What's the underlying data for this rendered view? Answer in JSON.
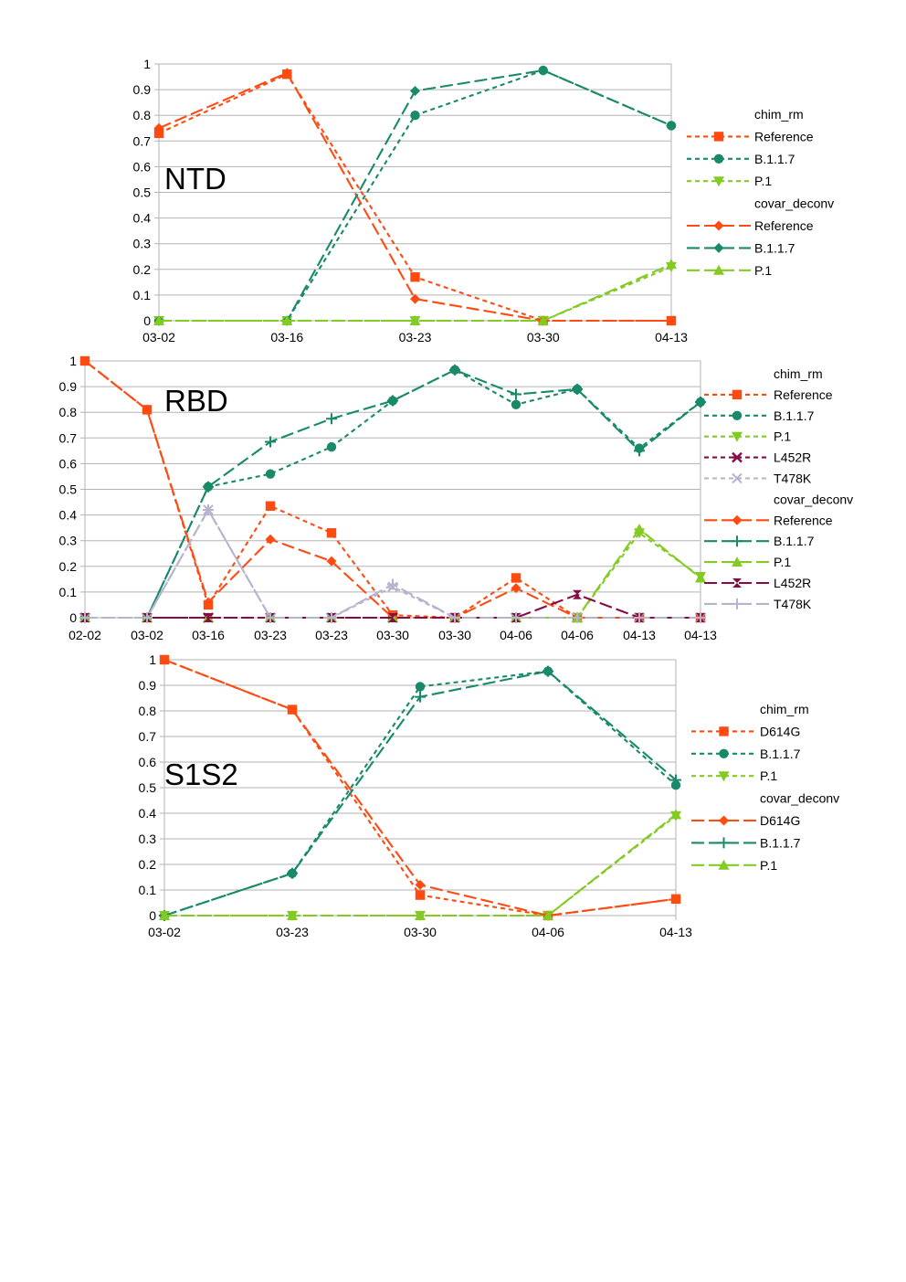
{
  "chart_data": [
    {
      "type": "line",
      "title": "NTD",
      "categories": [
        "03-02",
        "03-16",
        "03-23",
        "03-30",
        "04-13"
      ],
      "yticks": [
        "0",
        "0.1",
        "0.2",
        "0.3",
        "0.4",
        "0.5",
        "0.6",
        "0.7",
        "0.8",
        "0.9",
        "1"
      ],
      "ylim": [
        0,
        1
      ],
      "grid": true,
      "legend_position": "right",
      "legend_groups": [
        "chim_rm",
        "covar_deconv"
      ],
      "series": [
        {
          "group": "chim_rm",
          "name": "Reference",
          "color": "#ff4a12",
          "dash": "short",
          "marker": "square",
          "values": [
            0.73,
            0.96,
            0.17,
            0.0,
            0.0
          ]
        },
        {
          "group": "chim_rm",
          "name": "B.1.1.7",
          "color": "#188a6a",
          "dash": "short",
          "marker": "circle",
          "values": [
            0.0,
            0.0,
            0.8,
            0.975,
            0.76
          ]
        },
        {
          "group": "chim_rm",
          "name": "P.1",
          "color": "#83cb22",
          "dash": "short",
          "marker": "triangle-down",
          "values": [
            0.0,
            0.0,
            0.0,
            0.0,
            0.21
          ]
        },
        {
          "group": "covar_deconv",
          "name": "Reference",
          "color": "#ff4a12",
          "dash": "long",
          "marker": "diamond",
          "values": [
            0.75,
            0.965,
            0.085,
            0.0,
            0.0
          ]
        },
        {
          "group": "covar_deconv",
          "name": "B.1.1.7",
          "color": "#188a6a",
          "dash": "long",
          "marker": "diamond",
          "values": [
            0.0,
            0.0,
            0.895,
            0.975,
            0.76
          ]
        },
        {
          "group": "covar_deconv",
          "name": "P.1",
          "color": "#83cb22",
          "dash": "long",
          "marker": "triangle",
          "values": [
            0.0,
            0.0,
            0.0,
            0.0,
            0.22
          ]
        }
      ]
    },
    {
      "type": "line",
      "title": "RBD",
      "categories": [
        "02-02",
        "03-02",
        "03-16",
        "03-23",
        "03-23",
        "03-30",
        "03-30",
        "04-06",
        "04-06",
        "04-13",
        "04-13"
      ],
      "yticks": [
        "0",
        "0.1",
        "0.2",
        "0.3",
        "0.4",
        "0.5",
        "0.6",
        "0.7",
        "0.8",
        "0.9",
        "1"
      ],
      "ylim": [
        0,
        1
      ],
      "grid": true,
      "legend_position": "right",
      "legend_groups": [
        "chim_rm",
        "covar_deconv"
      ],
      "series": [
        {
          "group": "chim_rm",
          "name": "Reference",
          "color": "#ff4a12",
          "dash": "short",
          "marker": "square",
          "values": [
            1.0,
            0.81,
            0.05,
            0.435,
            0.33,
            0.01,
            0.0,
            0.155,
            0.0,
            0.0,
            0.0
          ]
        },
        {
          "group": "chim_rm",
          "name": "B.1.1.7",
          "color": "#188a6a",
          "dash": "short",
          "marker": "circle",
          "values": [
            0.0,
            0.0,
            0.51,
            0.56,
            0.665,
            0.845,
            0.965,
            0.83,
            0.89,
            0.66,
            0.84
          ]
        },
        {
          "group": "chim_rm",
          "name": "P.1",
          "color": "#83cb22",
          "dash": "short",
          "marker": "triangle-down",
          "values": [
            0.0,
            0.0,
            0.0,
            0.0,
            0.0,
            0.0,
            0.0,
            0.0,
            0.0,
            0.33,
            0.16
          ]
        },
        {
          "group": "chim_rm",
          "name": "L452R",
          "color": "#870b47",
          "dash": "short",
          "marker": "cross",
          "values": [
            0.0,
            0.0,
            0.0,
            0.0,
            0.0,
            0.0,
            0.0,
            0.0,
            0.0,
            0.0,
            0.0
          ]
        },
        {
          "group": "chim_rm",
          "name": "T478K",
          "color": "#b4b4cf",
          "dash": "short",
          "marker": "x",
          "values": [
            0.0,
            0.0,
            0.42,
            0.0,
            0.0,
            0.12,
            0.0,
            0.0,
            0.0,
            0.0,
            0.0
          ]
        },
        {
          "group": "covar_deconv",
          "name": "Reference",
          "color": "#ff4a12",
          "dash": "long",
          "marker": "diamond",
          "values": [
            1.0,
            0.81,
            0.06,
            0.305,
            0.22,
            0.0,
            0.0,
            0.115,
            0.0,
            0.0,
            0.0
          ]
        },
        {
          "group": "covar_deconv",
          "name": "B.1.1.7",
          "color": "#188a6a",
          "dash": "long",
          "marker": "plus",
          "values": [
            0.0,
            0.0,
            0.51,
            0.685,
            0.775,
            0.845,
            0.965,
            0.87,
            0.89,
            0.65,
            0.84
          ]
        },
        {
          "group": "covar_deconv",
          "name": "P.1",
          "color": "#83cb22",
          "dash": "long",
          "marker": "triangle",
          "values": [
            0.0,
            0.0,
            0.0,
            0.0,
            0.0,
            0.0,
            0.0,
            0.0,
            0.0,
            0.345,
            0.155
          ]
        },
        {
          "group": "covar_deconv",
          "name": "L452R",
          "color": "#870b47",
          "dash": "long",
          "marker": "hourglass",
          "values": [
            0.0,
            0.0,
            0.0,
            0.0,
            0.0,
            0.0,
            0.0,
            0.0,
            0.09,
            0.0,
            0.0
          ]
        },
        {
          "group": "covar_deconv",
          "name": "T478K",
          "color": "#b4b4cf",
          "dash": "long",
          "marker": "plus",
          "values": [
            0.0,
            0.0,
            0.42,
            0.0,
            0.0,
            0.13,
            0.0,
            0.0,
            0.0,
            0.0,
            0.0
          ]
        }
      ]
    },
    {
      "type": "line",
      "title": "S1S2",
      "categories": [
        "03-02",
        "03-23",
        "03-30",
        "04-06",
        "04-13"
      ],
      "yticks": [
        "0",
        "0.1",
        "0.2",
        "0.3",
        "0.4",
        "0.5",
        "0.6",
        "0.7",
        "0.8",
        "0.9",
        "1"
      ],
      "ylim": [
        0,
        1
      ],
      "grid": true,
      "legend_position": "right",
      "legend_groups": [
        "chim_rm",
        "covar_deconv"
      ],
      "series": [
        {
          "group": "chim_rm",
          "name": "D614G",
          "color": "#ff4a12",
          "dash": "short",
          "marker": "square",
          "values": [
            1.0,
            0.805,
            0.08,
            0.0,
            0.065
          ]
        },
        {
          "group": "chim_rm",
          "name": "B.1.1.7",
          "color": "#188a6a",
          "dash": "short",
          "marker": "circle",
          "values": [
            0.0,
            0.165,
            0.895,
            0.955,
            0.51
          ]
        },
        {
          "group": "chim_rm",
          "name": "P.1",
          "color": "#83cb22",
          "dash": "short",
          "marker": "triangle-down",
          "values": [
            0.0,
            0.0,
            0.0,
            0.0,
            0.39
          ]
        },
        {
          "group": "covar_deconv",
          "name": "D614G",
          "color": "#ff4a12",
          "dash": "long",
          "marker": "diamond",
          "values": [
            1.0,
            0.805,
            0.12,
            0.0,
            0.065
          ]
        },
        {
          "group": "covar_deconv",
          "name": "B.1.1.7",
          "color": "#188a6a",
          "dash": "long",
          "marker": "plus",
          "values": [
            0.0,
            0.165,
            0.855,
            0.955,
            0.53
          ]
        },
        {
          "group": "covar_deconv",
          "name": "P.1",
          "color": "#83cb22",
          "dash": "long",
          "marker": "triangle",
          "values": [
            0.0,
            0.0,
            0.0,
            0.0,
            0.395
          ]
        }
      ]
    }
  ]
}
